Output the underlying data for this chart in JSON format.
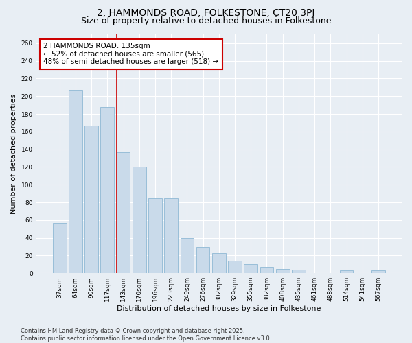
{
  "title_line1": "2, HAMMONDS ROAD, FOLKESTONE, CT20 3PJ",
  "title_line2": "Size of property relative to detached houses in Folkestone",
  "xlabel": "Distribution of detached houses by size in Folkestone",
  "ylabel": "Number of detached properties",
  "categories": [
    "37sqm",
    "64sqm",
    "90sqm",
    "117sqm",
    "143sqm",
    "170sqm",
    "196sqm",
    "223sqm",
    "249sqm",
    "276sqm",
    "302sqm",
    "329sqm",
    "355sqm",
    "382sqm",
    "408sqm",
    "435sqm",
    "461sqm",
    "488sqm",
    "514sqm",
    "541sqm",
    "567sqm"
  ],
  "values": [
    57,
    207,
    167,
    188,
    137,
    120,
    85,
    85,
    40,
    30,
    23,
    14,
    10,
    7,
    5,
    4,
    0,
    0,
    3,
    0,
    3
  ],
  "bar_color": "#c9daea",
  "bar_edge_color": "#8fb8d4",
  "vline_color": "#cc0000",
  "annotation_text": "2 HAMMONDS ROAD: 135sqm\n← 52% of detached houses are smaller (565)\n48% of semi-detached houses are larger (518) →",
  "annotation_box_facecolor": "#ffffff",
  "annotation_box_edgecolor": "#cc0000",
  "ylim": [
    0,
    270
  ],
  "yticks": [
    0,
    20,
    40,
    60,
    80,
    100,
    120,
    140,
    160,
    180,
    200,
    220,
    240,
    260
  ],
  "footer_text": "Contains HM Land Registry data © Crown copyright and database right 2025.\nContains public sector information licensed under the Open Government Licence v3.0.",
  "background_color": "#e8eef4",
  "grid_color": "#ffffff",
  "title_fontsize": 10,
  "subtitle_fontsize": 9,
  "axis_label_fontsize": 8,
  "tick_fontsize": 6.5,
  "annotation_fontsize": 7.5,
  "footer_fontsize": 6
}
